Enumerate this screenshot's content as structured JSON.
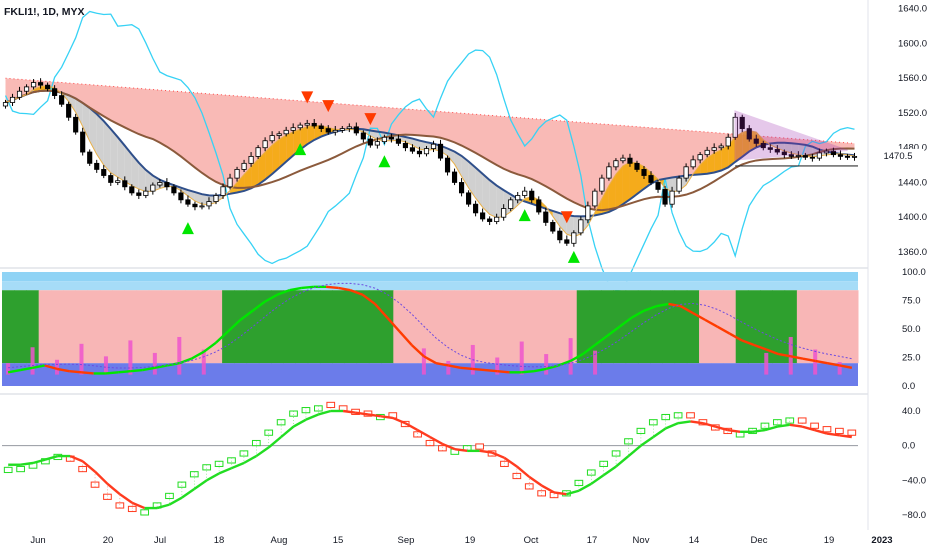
{
  "chart_title": "FKLI1!, 1D, MYX",
  "price_axis": {
    "ticks": [
      "1640.0",
      "1600.0",
      "1560.0",
      "1520.0",
      "1480.0",
      "1440.0",
      "1400.0",
      "1360.0"
    ],
    "tick_values": [
      1640,
      1600,
      1560,
      1520,
      1480,
      1440,
      1400,
      1360
    ],
    "current_label": "1470.5",
    "current_value": 1470.5
  },
  "osc_axis": {
    "ticks": [
      "100.0",
      "75.0",
      "50.0",
      "25.0",
      "0.0"
    ],
    "tick_values": [
      100,
      75,
      50,
      25,
      0
    ]
  },
  "mom_axis": {
    "ticks": [
      "40.0",
      "0.0",
      "−40.0",
      "−80.0"
    ],
    "tick_values": [
      40,
      0,
      -40,
      -80
    ]
  },
  "time_axis": {
    "labels": [
      "Jun",
      "20",
      "Jul",
      "18",
      "Aug",
      "15",
      "Sep",
      "19",
      "Oct",
      "17",
      "Nov",
      "14",
      "Dec",
      "19",
      "2023"
    ]
  },
  "colors": {
    "up": "#ffffff",
    "down": "#000000",
    "cloud": "#f7a39d",
    "bollinger": "#37d2f5",
    "ma_navy": "#2f4f8a",
    "ma_brown": "#8b5a3c",
    "band_orange": "#f5a800",
    "band_grey": "#c8c8c8",
    "triangle": "#9c27b0",
    "signal_up": "#00e600",
    "signal_down": "#ff3b00",
    "osc_green": "#2ea02e",
    "osc_pink": "#f8b6b6",
    "osc_blue": "#5b6ee8",
    "osc_sky": "#8fd3f5",
    "mom_green": "#22dd22",
    "mom_red": "#ff3b1f"
  },
  "chart_data": [
    {
      "type": "candlestick",
      "title": "FKLI1!, 1D, MYX",
      "ylim": [
        1345,
        1650
      ],
      "closes": [
        1532,
        1538,
        1545,
        1550,
        1555,
        1552,
        1548,
        1540,
        1530,
        1515,
        1498,
        1475,
        1462,
        1455,
        1448,
        1440,
        1442,
        1435,
        1428,
        1425,
        1430,
        1437,
        1440,
        1435,
        1428,
        1420,
        1415,
        1412,
        1413,
        1418,
        1425,
        1435,
        1445,
        1455,
        1462,
        1470,
        1480,
        1488,
        1494,
        1496,
        1500,
        1503,
        1506,
        1508,
        1505,
        1502,
        1498,
        1500,
        1502,
        1504,
        1497,
        1490,
        1483,
        1487,
        1492,
        1490,
        1485,
        1480,
        1476,
        1473,
        1479,
        1484,
        1468,
        1452,
        1440,
        1428,
        1415,
        1405,
        1398,
        1395,
        1400,
        1410,
        1420,
        1425,
        1430,
        1420,
        1406,
        1394,
        1384,
        1374,
        1370,
        1382,
        1397,
        1413,
        1430,
        1445,
        1458,
        1465,
        1468,
        1462,
        1455,
        1448,
        1440,
        1432,
        1415,
        1430,
        1445,
        1458,
        1466,
        1472,
        1477,
        1480,
        1482,
        1492,
        1515,
        1502,
        1490,
        1485,
        1480,
        1478,
        1475,
        1472,
        1470,
        1471,
        1469,
        1468,
        1474,
        1476,
        1472,
        1470,
        1469,
        1470
      ],
      "signals_up_index": [
        26,
        42,
        54,
        74,
        81
      ],
      "signals_down_index": [
        43,
        46,
        52,
        80
      ]
    },
    {
      "type": "area",
      "title": "",
      "ylim": [
        0,
        100
      ],
      "line_values": [
        12,
        14,
        16,
        18,
        15,
        13,
        12,
        11,
        11,
        12,
        13,
        14,
        16,
        18,
        20,
        24,
        30,
        38,
        48,
        58,
        66,
        74,
        80,
        84,
        86,
        87,
        87,
        86,
        84,
        80,
        72,
        60,
        48,
        36,
        26,
        20,
        18,
        16,
        15,
        14,
        13,
        12,
        12,
        13,
        15,
        18,
        22,
        28,
        36,
        44,
        52,
        60,
        66,
        70,
        72,
        70,
        64,
        58,
        52,
        46,
        40,
        36,
        32,
        28,
        26,
        24,
        22,
        20,
        18,
        16
      ]
    },
    {
      "type": "line",
      "title": "",
      "ylim": [
        -95,
        55
      ],
      "series": [
        {
          "values": [
            -25,
            -24,
            -20,
            -15,
            -10,
            -18,
            -30,
            -48,
            -62,
            -72,
            -76,
            -74,
            -66,
            -55,
            -42,
            -30,
            -22,
            -18,
            -14,
            -6,
            6,
            18,
            30,
            40,
            44,
            46,
            44,
            40,
            36,
            34,
            36,
            32,
            22,
            10,
            0,
            -6,
            -4,
            0,
            -4,
            -12,
            -24,
            -38,
            -50,
            -58,
            -60,
            -52,
            -40,
            -28,
            -18,
            -6,
            8,
            20,
            30,
            36,
            38,
            32,
            24,
            18,
            14,
            16,
            20,
            26,
            30,
            32,
            26,
            20,
            16,
            14,
            12
          ]
        },
        {
          "values": [
            -22,
            -22,
            -20,
            -16,
            -12,
            -12,
            -18,
            -30,
            -44,
            -56,
            -66,
            -72,
            -72,
            -68,
            -60,
            -50,
            -40,
            -32,
            -26,
            -20,
            -12,
            -2,
            10,
            22,
            30,
            36,
            40,
            40,
            38,
            36,
            34,
            32,
            26,
            18,
            10,
            2,
            -4,
            -6,
            -6,
            -8,
            -14,
            -24,
            -36,
            -46,
            -54,
            -56,
            -52,
            -44,
            -34,
            -24,
            -12,
            0,
            10,
            20,
            26,
            28,
            26,
            22,
            18,
            16,
            16,
            18,
            22,
            24,
            22,
            18,
            14,
            12,
            10
          ]
        }
      ]
    }
  ]
}
